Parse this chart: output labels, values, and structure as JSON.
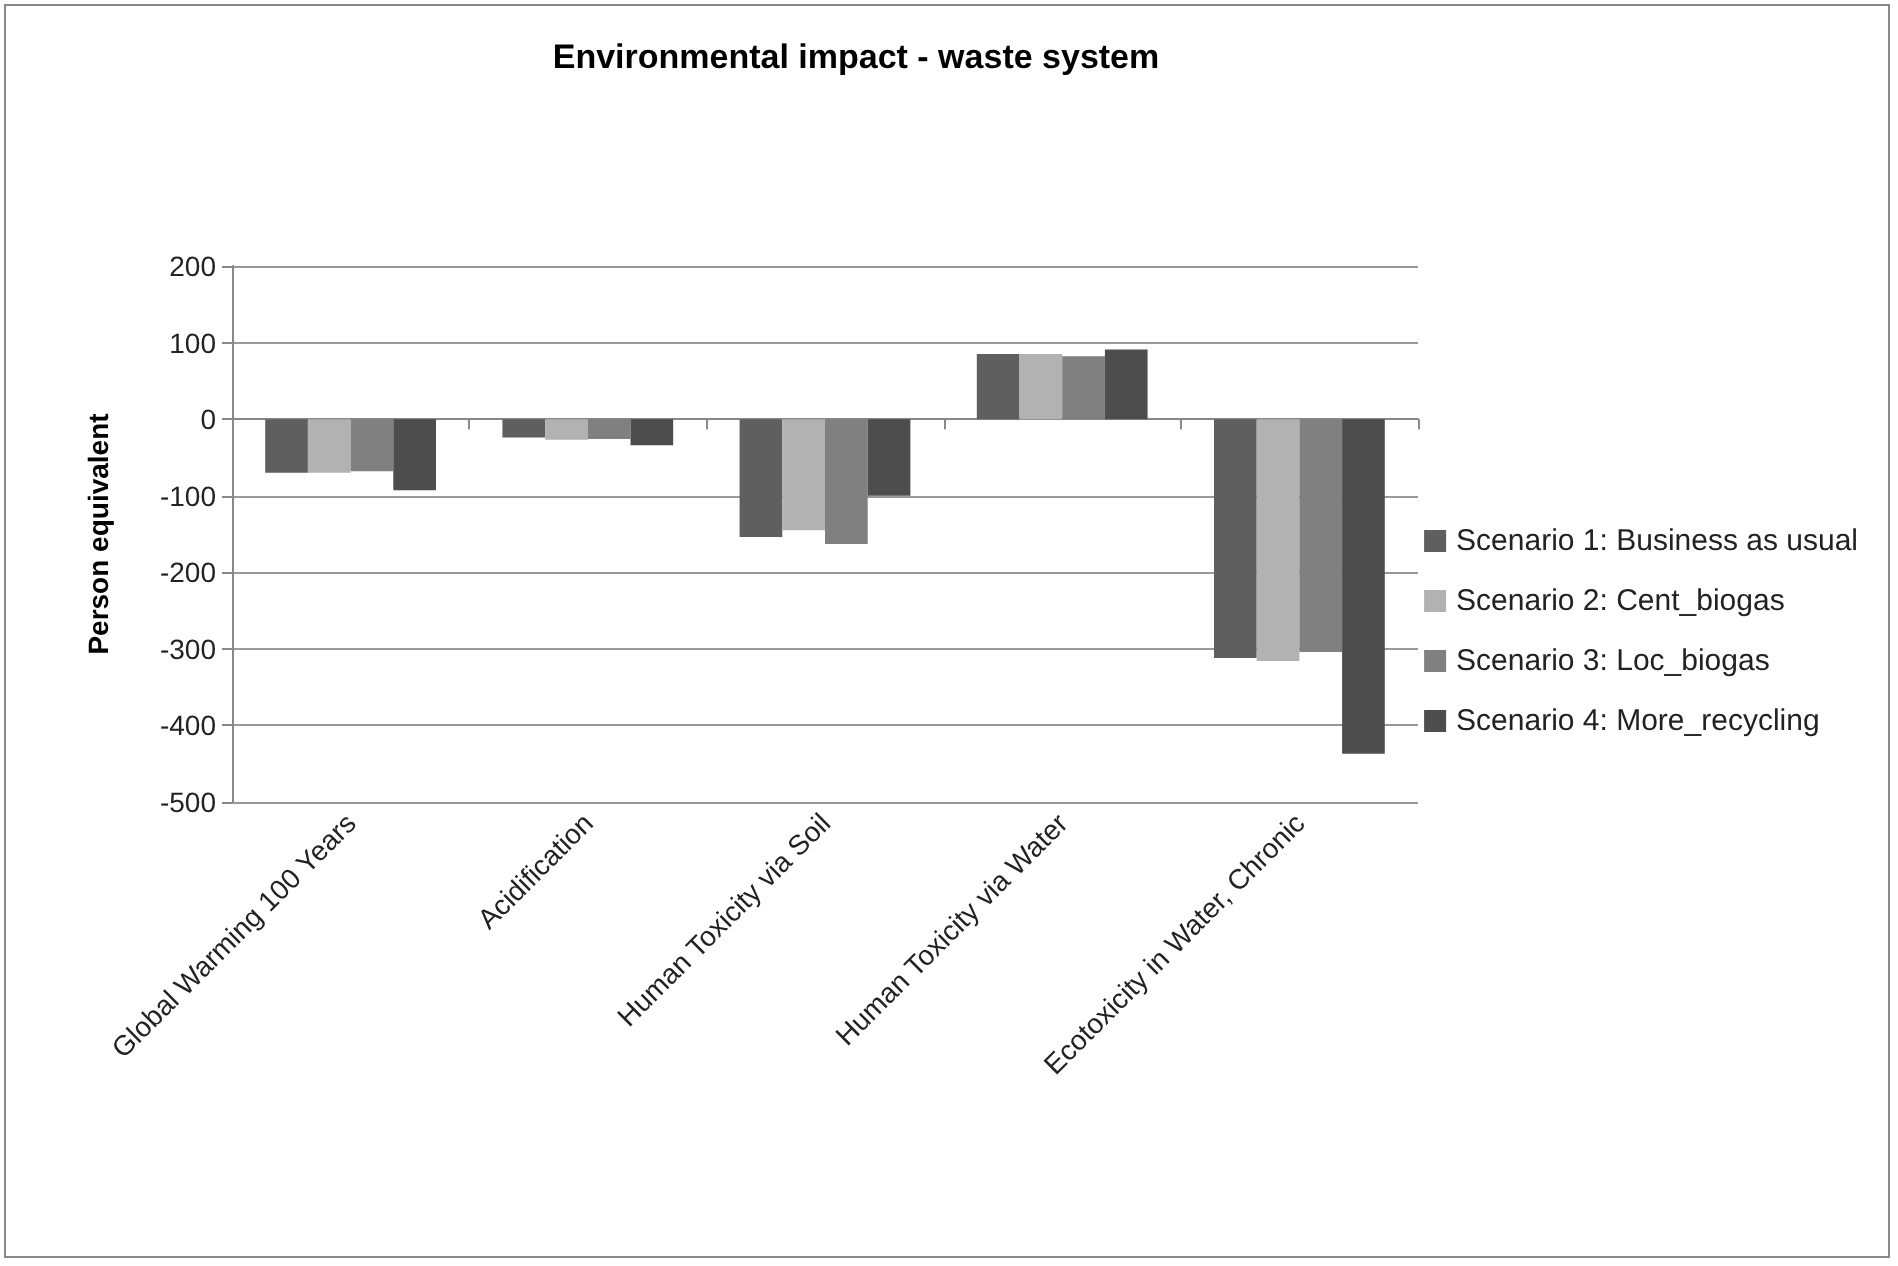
{
  "chart_data": {
    "type": "bar",
    "title": "Environmental impact - waste system",
    "ylabel": "Person equivalent",
    "categories": [
      "Global Warming 100 Years",
      "Acidification",
      "Human Toxicity via Soil",
      "Human Toxicity via Water",
      "Ecotoxicity in Water, Chronic"
    ],
    "series": [
      {
        "name": "Scenario 1: Business as usual",
        "color": "#5f5f5f",
        "values": [
          -70,
          -24,
          -154,
          85,
          -312
        ]
      },
      {
        "name": "Scenario 2: Cent_biogas",
        "color": "#b2b2b2",
        "values": [
          -70,
          -27,
          -145,
          85,
          -316
        ]
      },
      {
        "name": "Scenario 3: Loc_biogas",
        "color": "#808080",
        "values": [
          -68,
          -26,
          -163,
          82,
          -304
        ]
      },
      {
        "name": "Scenario 4: More_recycling",
        "color": "#4d4d4d",
        "values": [
          -93,
          -34,
          -100,
          91,
          -437
        ]
      }
    ],
    "ylim": [
      -500,
      200
    ],
    "yticks": [
      -500,
      -400,
      -300,
      -200,
      -100,
      0,
      100,
      200
    ],
    "grid": "y",
    "legend": "right"
  }
}
